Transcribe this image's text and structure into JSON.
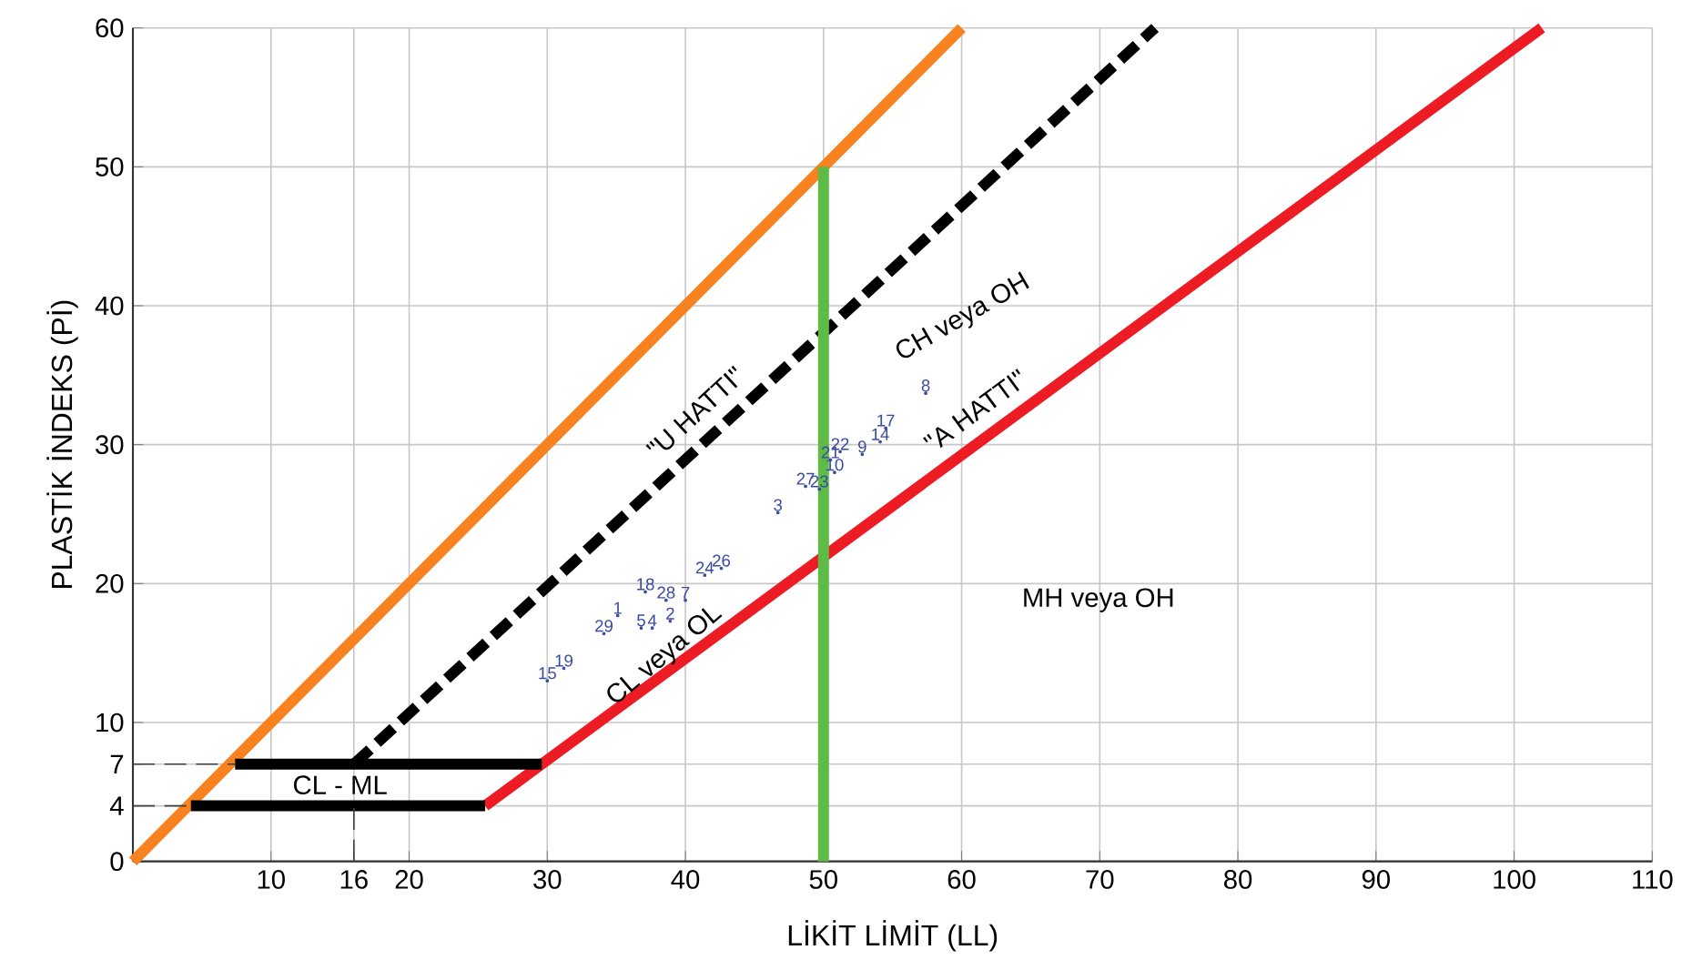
{
  "chart_data": {
    "type": "line",
    "xlabel": "LİKİT LİMİT (LL)",
    "ylabel": "PLASTİK İNDEKS (Pİ)",
    "xlim": [
      0,
      110
    ],
    "ylim": [
      0,
      60
    ],
    "xticks": [
      10,
      16,
      20,
      30,
      40,
      50,
      60,
      70,
      80,
      90,
      100,
      110
    ],
    "yticks": [
      0,
      4,
      7,
      10,
      20,
      30,
      40,
      50,
      60
    ],
    "grid": true,
    "series": [
      {
        "color": "#f7821f",
        "x": [
          0,
          60
        ],
        "values": [
          0,
          60
        ],
        "line_style": "solid"
      },
      {
        "name": "\"U HATTI\"",
        "color": "#000000",
        "x": [
          16,
          74
        ],
        "values": [
          7,
          60
        ],
        "line_style": "dashed"
      },
      {
        "name": "\"A HATTI\"",
        "color": "#ed1c24",
        "x": [
          25.5,
          29.6,
          102
        ],
        "values": [
          4,
          7,
          60
        ],
        "line_style": "solid"
      },
      {
        "color": "#5dbb46",
        "x": [
          50,
          50
        ],
        "values": [
          0,
          50
        ],
        "line_style": "solid"
      },
      {
        "color": "#000000",
        "x": [
          7.4,
          29.6
        ],
        "values": [
          7,
          7
        ],
        "line_style": "solid"
      },
      {
        "color": "#000000",
        "x": [
          4.2,
          25.5
        ],
        "values": [
          4,
          4
        ],
        "line_style": "solid"
      },
      {
        "color": "#404040",
        "x": [
          0,
          7.4
        ],
        "values": [
          7,
          7
        ],
        "line_style": "dashed"
      },
      {
        "color": "#404040",
        "x": [
          0,
          4.2
        ],
        "values": [
          4,
          4
        ],
        "line_style": "dashed"
      },
      {
        "color": "#404040",
        "x": [
          16,
          16
        ],
        "values": [
          0,
          4
        ],
        "line_style": "dashed"
      },
      {
        "type": "scatter",
        "marker": "circle",
        "color": "#3b4ba3",
        "x": [
          30.0,
          31.2,
          34.1,
          35.1,
          37.1,
          36.8,
          37.6,
          38.6,
          40.0,
          38.9,
          41.4,
          42.6,
          57.4,
          54.5,
          54.1,
          52.8,
          51.2,
          50.5,
          50.8,
          48.7,
          49.7,
          46.7
        ],
        "values": [
          13.0,
          13.9,
          16.4,
          17.7,
          19.4,
          16.8,
          16.8,
          18.8,
          18.8,
          17.3,
          20.6,
          21.1,
          33.7,
          31.2,
          30.2,
          29.3,
          29.5,
          28.9,
          28.0,
          27.0,
          26.8,
          25.1
        ]
      }
    ],
    "annotations": [
      "CH veya OH",
      "MH veya OH",
      "CL veya OL",
      "CL - ML",
      {
        "text": "15",
        "x": 30.0,
        "y": 13.0
      },
      {
        "text": "19",
        "x": 31.2,
        "y": 13.9
      },
      {
        "text": "29",
        "x": 34.1,
        "y": 16.4
      },
      {
        "text": "1",
        "x": 35.1,
        "y": 17.7
      },
      {
        "text": "18",
        "x": 37.1,
        "y": 19.4
      },
      {
        "text": "5",
        "x": 36.8,
        "y": 16.8
      },
      {
        "text": "4",
        "x": 37.6,
        "y": 16.8
      },
      {
        "text": "28",
        "x": 38.6,
        "y": 18.8
      },
      {
        "text": "7",
        "x": 40.0,
        "y": 18.8
      },
      {
        "text": "2",
        "x": 38.9,
        "y": 17.3
      },
      {
        "text": "24",
        "x": 41.4,
        "y": 20.6
      },
      {
        "text": "26",
        "x": 42.6,
        "y": 21.1
      },
      {
        "text": "8",
        "x": 57.4,
        "y": 33.7
      },
      {
        "text": "17",
        "x": 54.5,
        "y": 31.2
      },
      {
        "text": "14",
        "x": 54.1,
        "y": 30.2
      },
      {
        "text": "9",
        "x": 52.8,
        "y": 29.3
      },
      {
        "text": "22",
        "x": 51.2,
        "y": 29.5
      },
      {
        "text": "21",
        "x": 50.5,
        "y": 28.9
      },
      {
        "text": "10",
        "x": 50.8,
        "y": 28.0
      },
      {
        "text": "27",
        "x": 48.7,
        "y": 27.0
      },
      {
        "text": "23",
        "x": 49.7,
        "y": 26.8
      },
      {
        "text": "3",
        "x": 46.7,
        "y": 25.1
      }
    ]
  }
}
